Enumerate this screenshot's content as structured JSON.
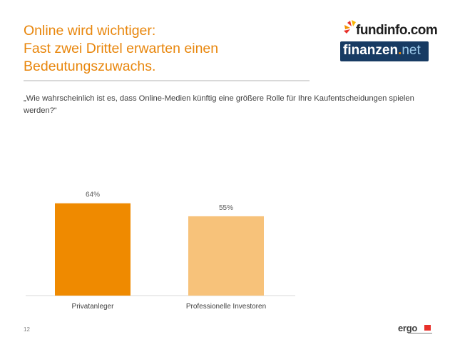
{
  "slide": {
    "title_lines": [
      "Online wird wichtiger:",
      "Fast zwei Drittel erwarten einen",
      "Bedeutungszuwachs."
    ],
    "question": "„Wie wahrscheinlich ist es, dass Online-Medien künftig eine größere Rolle für Ihre Kaufentscheidungen spielen werden?“",
    "page_number": "12",
    "logos": {
      "fundinfo": "fundinfo.com",
      "finanzen_main": "finanzen",
      "finanzen_dot": ".",
      "finanzen_net": "net",
      "ergo": "ergo"
    }
  },
  "colors": {
    "accent": "#e8860c",
    "bar_privat": "#ef8a00",
    "bar_prof": "#f7c27a",
    "finanzen_bg": "#173b63"
  },
  "chart_data": {
    "type": "bar",
    "categories": [
      "Privatanleger",
      "Professionelle Investoren"
    ],
    "values": [
      64,
      55
    ],
    "value_labels": [
      "64%",
      "55%"
    ],
    "unit": "%",
    "title": "",
    "xlabel": "",
    "ylabel": "",
    "ylim": [
      0,
      100
    ],
    "grid": false,
    "legend": "none"
  }
}
